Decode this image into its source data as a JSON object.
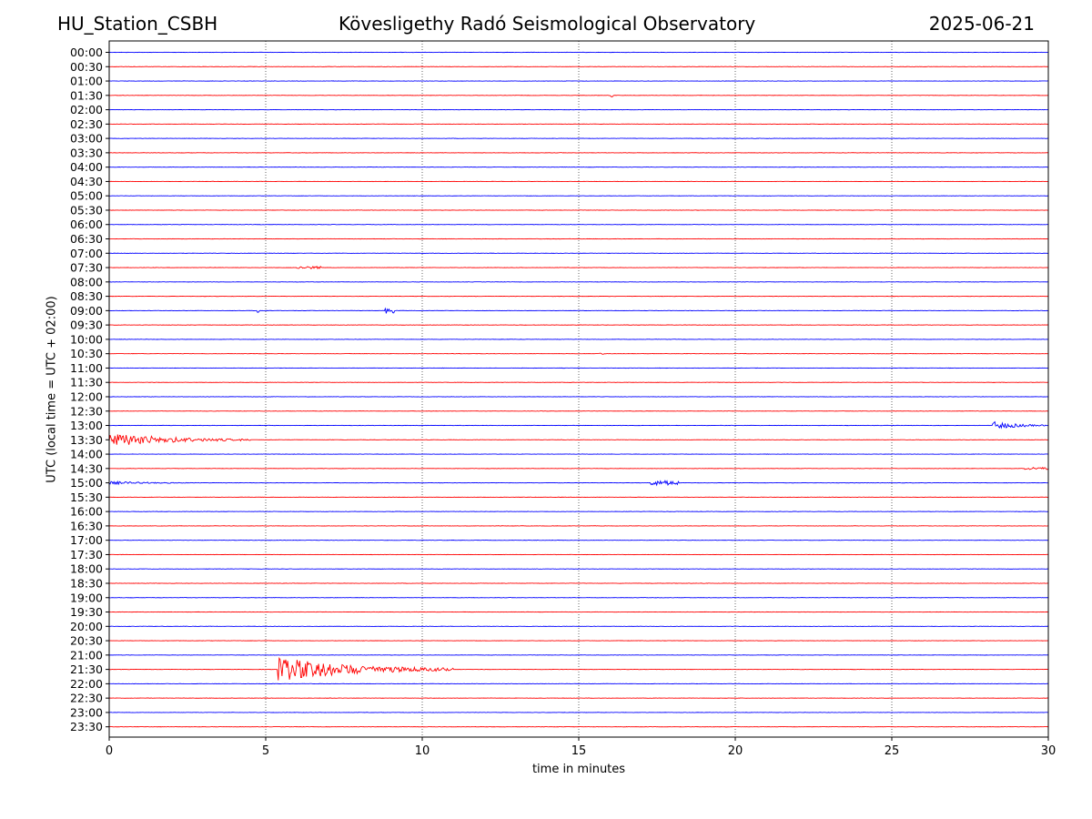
{
  "header": {
    "station": "HU_Station_CSBH",
    "observatory": "Kövesligethy Radó Seismological Observatory",
    "date": "2025-06-21"
  },
  "chart_data": {
    "type": "line",
    "title": "Kövesligethy Radó Seismological Observatory",
    "xlabel": "time in minutes",
    "ylabel": "UTC (local time = UTC + 02:00)",
    "xlim": [
      0,
      30
    ],
    "x_ticks": [
      0,
      5,
      10,
      15,
      20,
      25,
      30
    ],
    "grid": "vertical dotted lines at x ticks",
    "row_colors": [
      "#0000ff",
      "#ff0000"
    ],
    "rows": [
      "00:00",
      "00:30",
      "01:00",
      "01:30",
      "02:00",
      "02:30",
      "03:00",
      "03:30",
      "04:00",
      "04:30",
      "05:00",
      "05:30",
      "06:00",
      "06:30",
      "07:00",
      "07:30",
      "08:00",
      "08:30",
      "09:00",
      "09:30",
      "10:00",
      "10:30",
      "11:00",
      "11:30",
      "12:00",
      "12:30",
      "13:00",
      "13:30",
      "14:00",
      "14:30",
      "15:00",
      "15:30",
      "16:00",
      "16:30",
      "17:00",
      "17:30",
      "18:00",
      "18:30",
      "19:00",
      "19:30",
      "20:00",
      "20:30",
      "21:00",
      "21:30",
      "22:00",
      "22:30",
      "23:00",
      "23:30"
    ],
    "events": [
      {
        "row": "13:00",
        "start_min": 28.2,
        "end_min": 30.0,
        "amplitude": 0.55
      },
      {
        "row": "13:30",
        "start_min": 0.0,
        "end_min": 4.5,
        "amplitude": 0.85
      },
      {
        "row": "21:30",
        "start_min": 5.4,
        "end_min": 11.0,
        "amplitude": 1.5
      },
      {
        "row": "09:00",
        "start_min": 4.7,
        "end_min": 4.8,
        "amplitude": 0.25
      },
      {
        "row": "09:00",
        "start_min": 8.8,
        "end_min": 9.1,
        "amplitude": 0.35
      },
      {
        "row": "15:00",
        "start_min": 0.0,
        "end_min": 3.2,
        "amplitude": 0.18
      },
      {
        "row": "15:00",
        "start_min": 17.3,
        "end_min": 18.2,
        "amplitude": 0.3
      },
      {
        "row": "14:30",
        "start_min": 29.2,
        "end_min": 30.0,
        "amplitude": 0.15
      },
      {
        "row": "07:30",
        "start_min": 6.0,
        "end_min": 6.8,
        "amplitude": 0.15
      },
      {
        "row": "01:30",
        "start_min": 16.0,
        "end_min": 16.1,
        "amplitude": 0.25
      },
      {
        "row": "10:30",
        "start_min": 15.6,
        "end_min": 15.8,
        "amplitude": 0.15
      }
    ]
  }
}
